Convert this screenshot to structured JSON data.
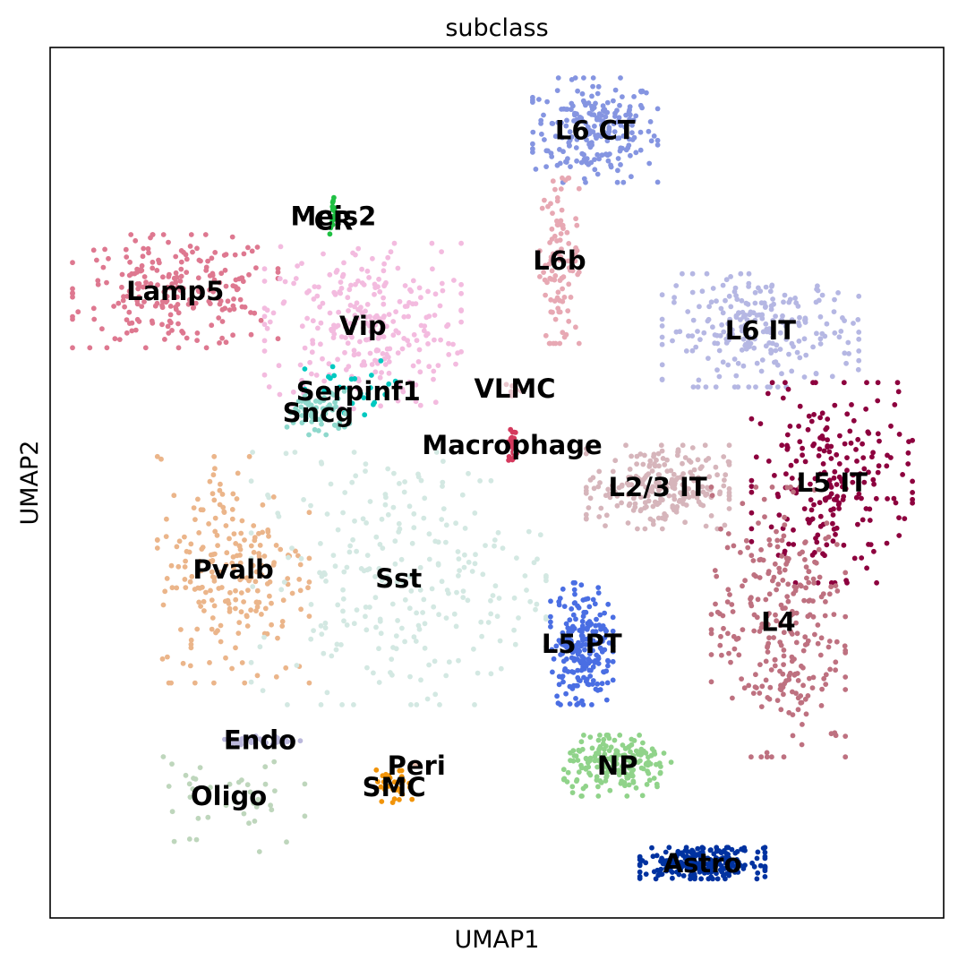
{
  "chart_data": {
    "type": "scatter",
    "title": "subclass",
    "xlabel": "UMAP1",
    "ylabel": "UMAP2",
    "xlim": [
      0,
      100
    ],
    "ylim": [
      0,
      100
    ],
    "ticks": "none",
    "grid": false,
    "legend": "on-data labels",
    "series": [
      {
        "name": "L6 CT",
        "color": "#8595e1",
        "center": [
          61.0,
          90.5
        ],
        "spread": [
          7.0,
          6.0
        ],
        "count": 220
      },
      {
        "name": "L6b",
        "color": "#e7a8b3",
        "center": [
          57.0,
          75.5
        ],
        "spread": [
          2.2,
          9.5
        ],
        "count": 100
      },
      {
        "name": "Meis2",
        "color": "#1fc043",
        "center": [
          31.7,
          80.6
        ],
        "spread": [
          0.4,
          2.2
        ],
        "count": 14
      },
      {
        "name": "CR",
        "color": "#1fc043",
        "center": [
          31.7,
          80.1
        ],
        "spread": [
          0.3,
          1.0
        ],
        "count": 4
      },
      {
        "name": "Lamp5",
        "color": "#de7890",
        "center": [
          14.0,
          72.0
        ],
        "spread": [
          11.5,
          6.5
        ],
        "count": 230
      },
      {
        "name": "Vip",
        "color": "#f3bbdf",
        "center": [
          35.0,
          68.0
        ],
        "spread": [
          11.0,
          9.5
        ],
        "count": 280
      },
      {
        "name": "Serpinf1",
        "color": "#00c9c0",
        "center": [
          34.5,
          60.5
        ],
        "spread": [
          6.0,
          3.5
        ],
        "count": 25
      },
      {
        "name": "Sncg",
        "color": "#8ed8cc",
        "center": [
          30.0,
          58.0
        ],
        "spread": [
          3.5,
          2.5
        ],
        "count": 70
      },
      {
        "name": "VLMC",
        "color": "#e9c6cd",
        "center": [
          52.0,
          60.8
        ],
        "spread": [
          1.0,
          0.8
        ],
        "count": 6
      },
      {
        "name": "Macrophage",
        "color": "#d4395d",
        "center": [
          51.7,
          54.3
        ],
        "spread": [
          0.5,
          1.8
        ],
        "count": 25
      },
      {
        "name": "L6 IT",
        "color": "#b5b7e3",
        "center": [
          79.5,
          67.5
        ],
        "spread": [
          11.0,
          6.5
        ],
        "count": 240
      },
      {
        "name": "L5 IT",
        "color": "#8d003e",
        "center": [
          87.5,
          50.0
        ],
        "spread": [
          9.0,
          11.5
        ],
        "count": 220
      },
      {
        "name": "L2/3 IT",
        "color": "#d6b5bb",
        "center": [
          68.0,
          49.5
        ],
        "spread": [
          8.0,
          4.8
        ],
        "count": 230
      },
      {
        "name": "Pvalb",
        "color": "#ebb58a",
        "center": [
          20.5,
          40.0
        ],
        "spread": [
          8.5,
          13.0
        ],
        "count": 220
      },
      {
        "name": "Sst",
        "color": "#d3e8e2",
        "center": [
          39.0,
          39.0
        ],
        "spread": [
          16.5,
          14.5
        ],
        "count": 260
      },
      {
        "name": "L4",
        "color": "#be7180",
        "center": [
          81.5,
          34.0
        ],
        "spread": [
          7.5,
          15.5
        ],
        "count": 280
      },
      {
        "name": "L5 PT",
        "color": "#4a6ee3",
        "center": [
          59.5,
          31.5
        ],
        "spread": [
          3.5,
          7.0
        ],
        "count": 220
      },
      {
        "name": "Endo",
        "color": "#bbb8dc",
        "center": [
          23.5,
          20.4
        ],
        "spread": [
          4.5,
          0.5
        ],
        "count": 40
      },
      {
        "name": "Peri",
        "color": "#e8bfb0",
        "center": [
          41.0,
          17.5
        ],
        "spread": [
          0.3,
          0.3
        ],
        "count": 3
      },
      {
        "name": "SMC",
        "color": "#f1940a",
        "center": [
          38.5,
          15.0
        ],
        "spread": [
          2.0,
          2.0
        ],
        "count": 30
      },
      {
        "name": "NP",
        "color": "#90d38a",
        "center": [
          63.5,
          17.5
        ],
        "spread": [
          6.0,
          3.5
        ],
        "count": 200
      },
      {
        "name": "Oligo",
        "color": "#bed6bc",
        "center": [
          20.0,
          14.0
        ],
        "spread": [
          8.5,
          7.0
        ],
        "count": 40
      },
      {
        "name": "Astro",
        "color": "#0032a0",
        "center": [
          73.0,
          6.3
        ],
        "spread": [
          7.0,
          1.8
        ],
        "count": 260
      }
    ]
  }
}
